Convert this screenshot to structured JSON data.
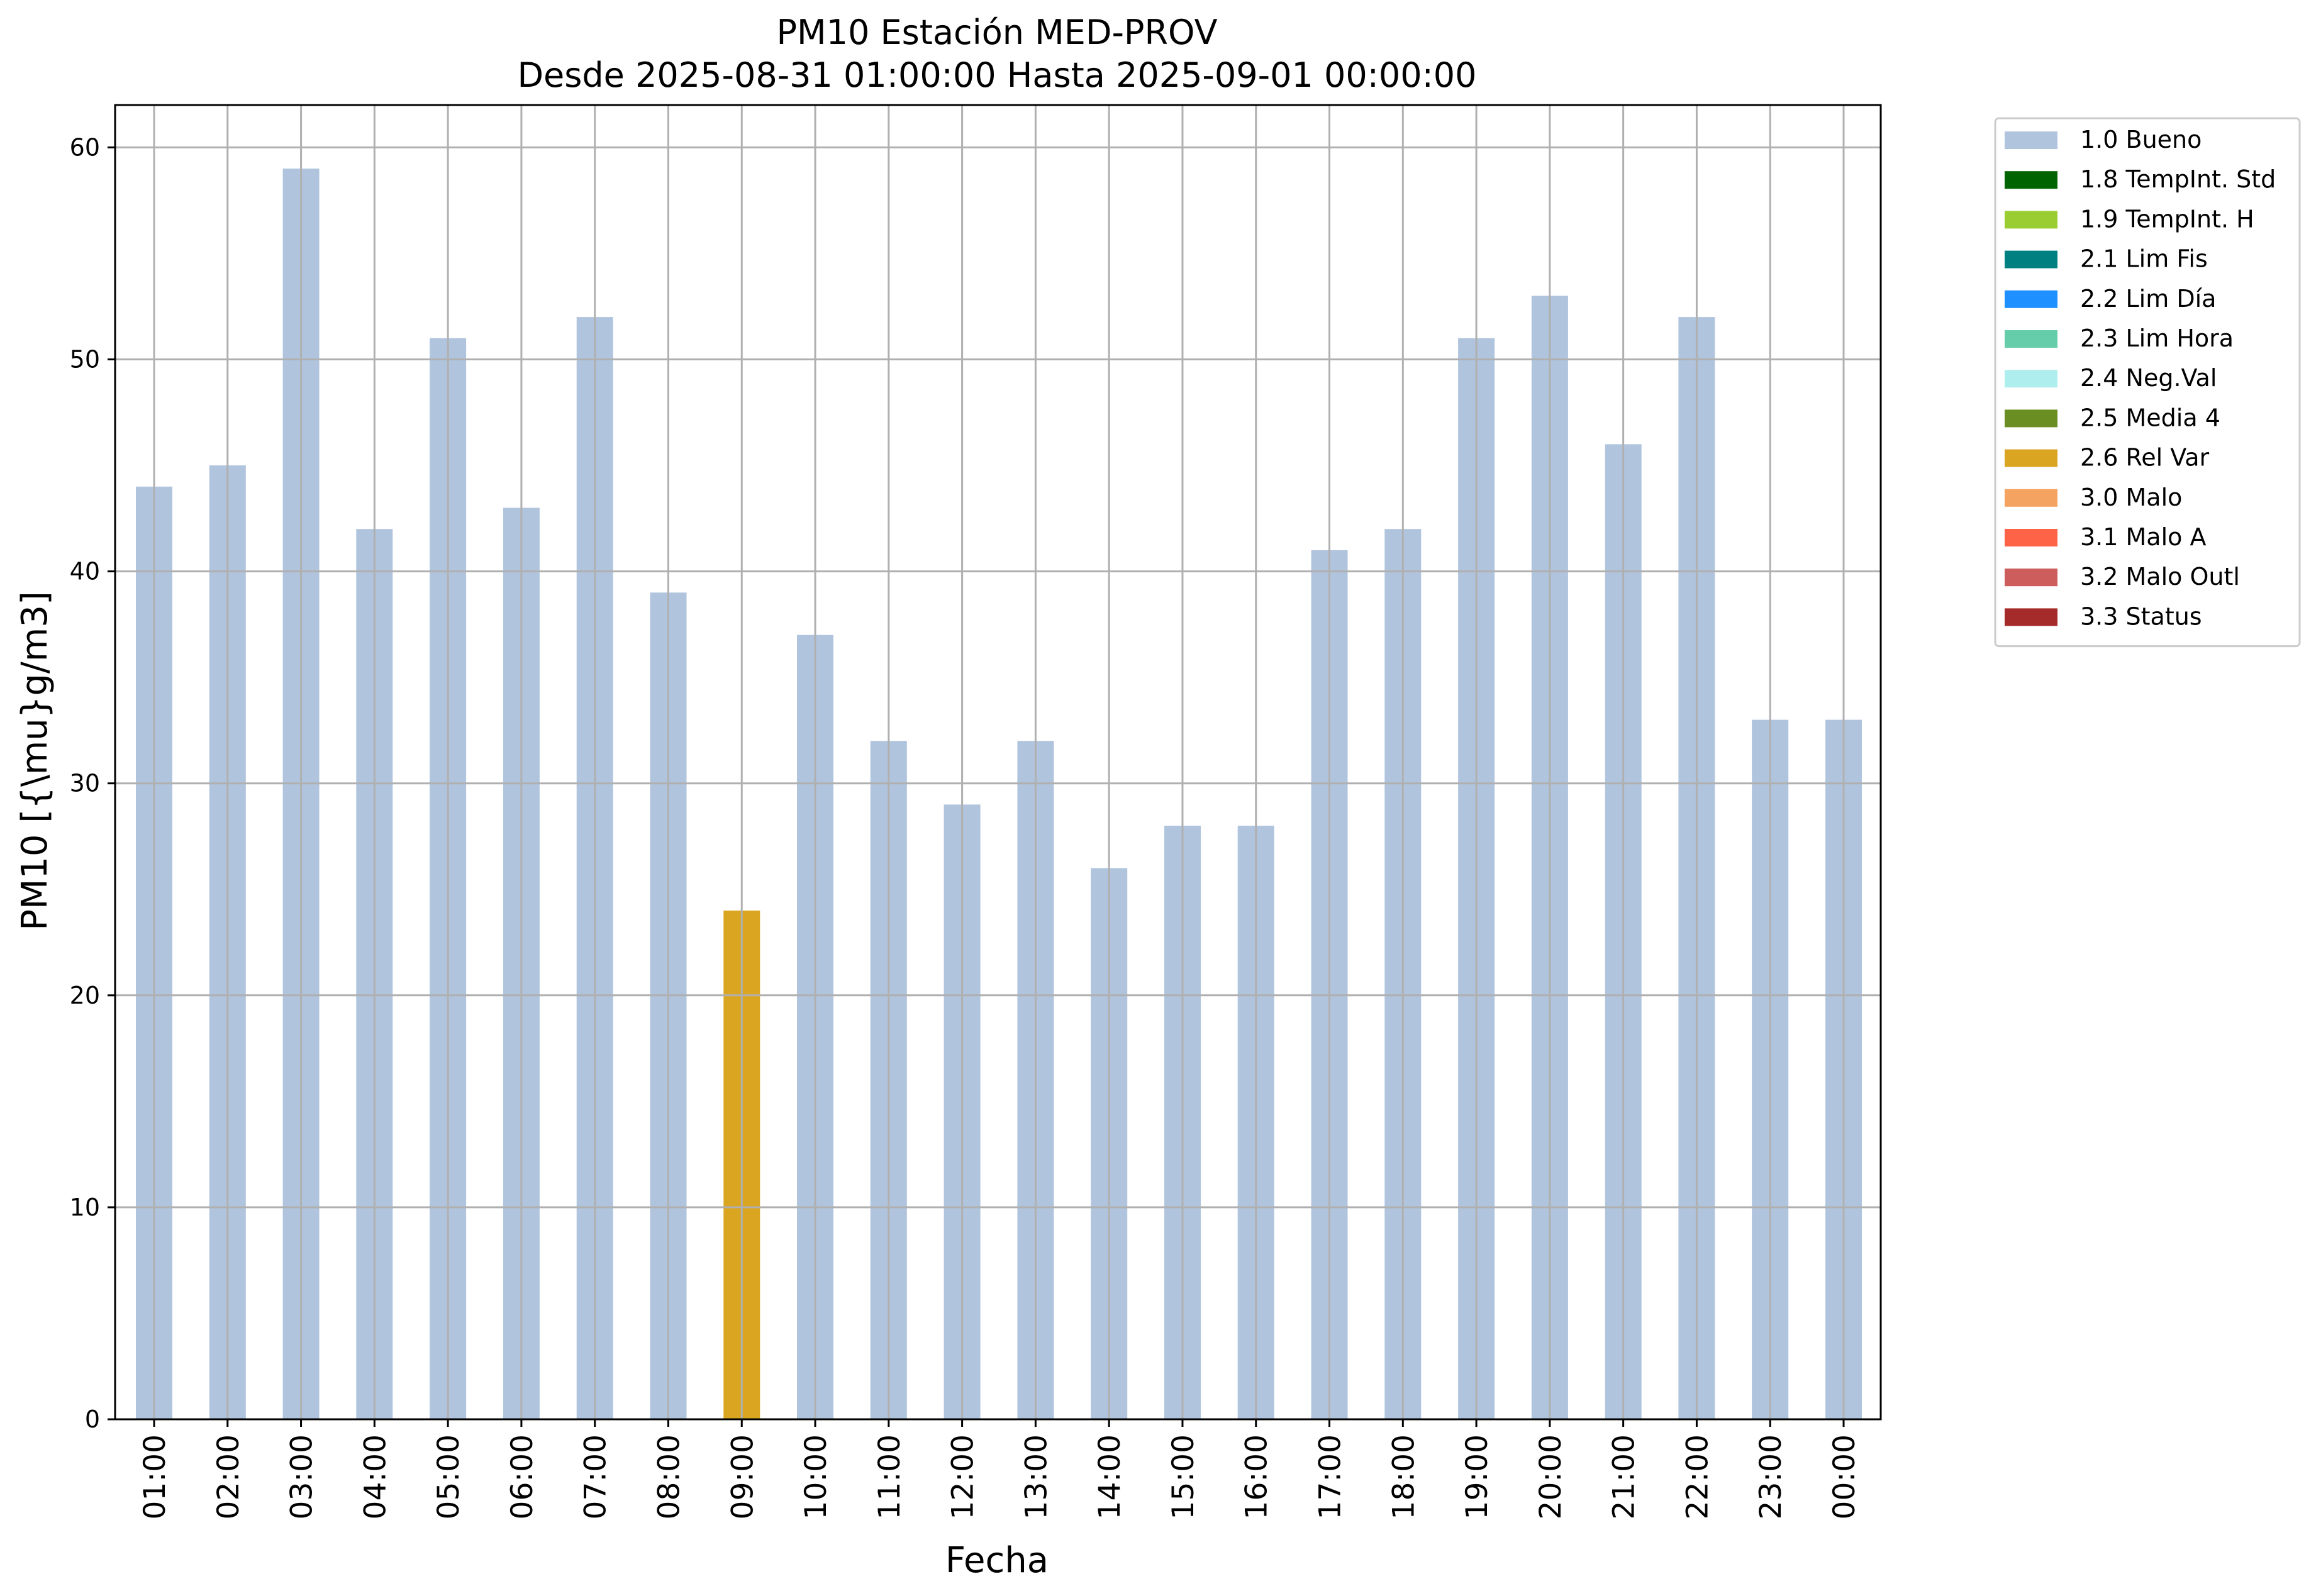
{
  "chart_data": {
    "type": "bar",
    "title_line1": "PM10 Estación MED-PROV",
    "title_line2": "Desde 2025-08-31 01:00:00 Hasta 2025-09-01 00:00:00",
    "xlabel": "Fecha",
    "ylabel": "PM10 [{\\mu}g/m3]",
    "ylim": [
      0,
      62
    ],
    "yticks": [
      0,
      10,
      20,
      30,
      40,
      50,
      60
    ],
    "grid": true,
    "legend_position": "outside-right",
    "categories": [
      "01:00",
      "02:00",
      "03:00",
      "04:00",
      "05:00",
      "06:00",
      "07:00",
      "08:00",
      "09:00",
      "10:00",
      "11:00",
      "12:00",
      "13:00",
      "14:00",
      "15:00",
      "16:00",
      "17:00",
      "18:00",
      "19:00",
      "20:00",
      "21:00",
      "22:00",
      "23:00",
      "00:00"
    ],
    "values": [
      44,
      45,
      59,
      42,
      51,
      43,
      52,
      39,
      24,
      37,
      32,
      29,
      32,
      26,
      28,
      28,
      41,
      42,
      51,
      53,
      46,
      52,
      33,
      33
    ],
    "flags": [
      "1.0 Bueno",
      "1.0 Bueno",
      "1.0 Bueno",
      "1.0 Bueno",
      "1.0 Bueno",
      "1.0 Bueno",
      "1.0 Bueno",
      "1.0 Bueno",
      "2.6 Rel Var",
      "1.0 Bueno",
      "1.0 Bueno",
      "1.0 Bueno",
      "1.0 Bueno",
      "1.0 Bueno",
      "1.0 Bueno",
      "1.0 Bueno",
      "1.0 Bueno",
      "1.0 Bueno",
      "1.0 Bueno",
      "1.0 Bueno",
      "1.0 Bueno",
      "1.0 Bueno",
      "1.0 Bueno",
      "1.0 Bueno"
    ],
    "legend": [
      {
        "label": "1.0 Bueno",
        "color": "#b0c4de"
      },
      {
        "label": "1.8 TempInt. Std",
        "color": "#006400"
      },
      {
        "label": "1.9 TempInt. H",
        "color": "#9acd32"
      },
      {
        "label": "2.1 Lim Fis",
        "color": "#008080"
      },
      {
        "label": "2.2 Lim Día",
        "color": "#1e90ff"
      },
      {
        "label": "2.3 Lim Hora",
        "color": "#66cdaa"
      },
      {
        "label": "2.4 Neg.Val",
        "color": "#afeeee"
      },
      {
        "label": "2.5 Media 4",
        "color": "#6b8e23"
      },
      {
        "label": "2.6 Rel Var",
        "color": "#daa520"
      },
      {
        "label": "3.0 Malo",
        "color": "#f4a460"
      },
      {
        "label": "3.1 Malo A",
        "color": "#ff6347"
      },
      {
        "label": "3.2 Malo Outl",
        "color": "#cd5c5c"
      },
      {
        "label": "3.3 Status",
        "color": "#a52a2a"
      }
    ],
    "grid_color": "#b0b0b0"
  }
}
